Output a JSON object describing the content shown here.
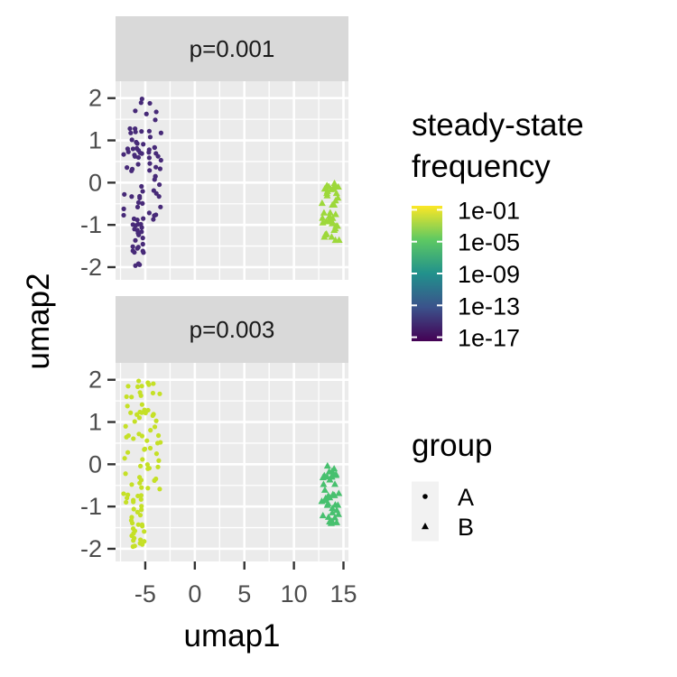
{
  "chart_data": {
    "type": "scatter",
    "xlabel": "umap1",
    "ylabel": "umap2",
    "xlim": [
      -8,
      15.5
    ],
    "ylim": [
      -2.3,
      2.4
    ],
    "x_ticks": [
      -5,
      0,
      5,
      10,
      15
    ],
    "y_ticks": [
      2,
      1,
      0,
      -1,
      -2
    ],
    "grid": true,
    "facets": [
      {
        "label": "p=0.001",
        "clusters": [
          {
            "group": "A",
            "log10_frequency": -15.5,
            "x_range": [
              -7.2,
              -3.4
            ],
            "y_range": [
              -2.0,
              2.0
            ],
            "n": 95
          },
          {
            "group": "B",
            "log10_frequency": -3.0,
            "x_range": [
              12.8,
              14.6
            ],
            "y_range": [
              -1.4,
              0.0
            ],
            "n": 40
          }
        ]
      },
      {
        "label": "p=0.003",
        "clusters": [
          {
            "group": "A",
            "log10_frequency": -2.0,
            "x_range": [
              -7.2,
              -3.4
            ],
            "y_range": [
              -2.0,
              2.0
            ],
            "n": 95
          },
          {
            "group": "B",
            "log10_frequency": -5.5,
            "x_range": [
              12.8,
              14.6
            ],
            "y_range": [
              -1.4,
              0.0
            ],
            "n": 40
          }
        ]
      }
    ],
    "color_legend": {
      "title": [
        "steady-state",
        "frequency"
      ],
      "labels": [
        "1e-01",
        "1e-05",
        "1e-09",
        "1e-13",
        "1e-17"
      ],
      "log10_values": [
        -1,
        -5,
        -9,
        -13,
        -17
      ],
      "colormap": "viridis",
      "colors": [
        "#fde725",
        "#5ec962",
        "#21918c",
        "#3b528b",
        "#440154"
      ]
    },
    "shape_legend": {
      "title": "group",
      "items": [
        {
          "label": "A",
          "shape": "circle"
        },
        {
          "label": "B",
          "shape": "triangle"
        }
      ]
    }
  }
}
